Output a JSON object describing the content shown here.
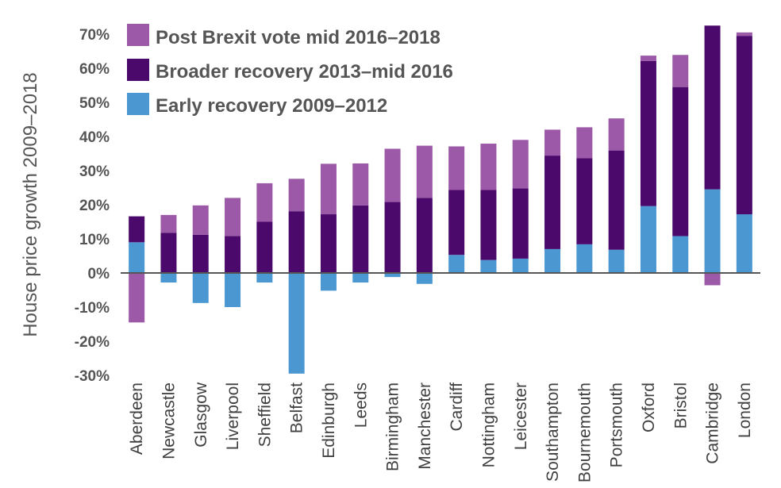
{
  "chart_data": {
    "type": "bar",
    "stacked": true,
    "ylabel": "House price growth 2009–2018",
    "ylim": [
      -30,
      70
    ],
    "yticks": [
      -30,
      -20,
      -10,
      0,
      10,
      20,
      30,
      40,
      50,
      60,
      70
    ],
    "ytick_suffix": "%",
    "legend_position": "top-left",
    "categories": [
      "Aberdeen",
      "Newcastle",
      "Glasgow",
      "Liverpool",
      "Sheffield",
      "Belfast",
      "Edinburgh",
      "Leeds",
      "Birmingham",
      "Manchester",
      "Cardiff",
      "Nottingham",
      "Leicester",
      "Southampton",
      "Bournemouth",
      "Portsmouth",
      "Oxford",
      "Bristol",
      "Cambridge",
      "London"
    ],
    "series": [
      {
        "name": "Early recovery 2009–2012",
        "color": "#4a97d2",
        "values": [
          9.0,
          -2.8,
          -8.8,
          -10.0,
          -2.8,
          -29.5,
          -5.2,
          -2.8,
          -1.2,
          -3.2,
          5.3,
          3.8,
          4.2,
          7.0,
          8.4,
          6.8,
          19.6,
          10.8,
          24.5,
          17.2
        ]
      },
      {
        "name": "Broader recovery 2013–mid 2016",
        "color": "#4b0a6b",
        "values": [
          7.6,
          11.8,
          11.2,
          10.8,
          15.0,
          18.1,
          17.2,
          19.8,
          20.8,
          22.0,
          19.0,
          20.5,
          20.6,
          27.4,
          25.2,
          29.1,
          42.5,
          43.7,
          48.0,
          52.3
        ]
      },
      {
        "name": "Post Brexit vote mid 2016–2018",
        "color": "#9b59a7",
        "values": [
          -14.5,
          5.2,
          8.6,
          11.2,
          11.3,
          9.5,
          14.8,
          12.3,
          15.6,
          15.3,
          12.8,
          13.6,
          14.2,
          7.6,
          9.1,
          9.4,
          1.6,
          9.4,
          -3.6,
          1.0
        ]
      }
    ]
  }
}
